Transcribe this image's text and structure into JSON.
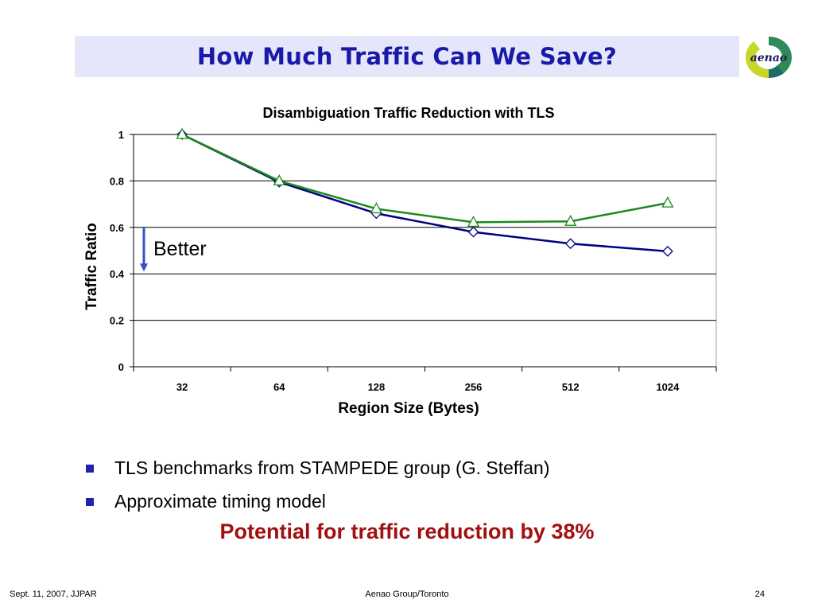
{
  "slide": {
    "title": "How Much Traffic Can We Save?",
    "logo_text": "aenao",
    "bullets": [
      "TLS benchmarks from STAMPEDE group (G. Steffan)",
      "Approximate timing model"
    ],
    "highlight": "Potential for traffic reduction by 38%",
    "footer": {
      "left": "Sept. 11, 2007, JJPAR",
      "center": "Aenao Group/Toronto",
      "right": "24"
    }
  },
  "colors": {
    "title": "#1a1aa8",
    "title_bg": "#e6e6fa",
    "bullet": "#2222b2",
    "highlight": "#a01010",
    "series_blue": "#000080",
    "series_green": "#1a8a1a",
    "arrow": "#3a4fc8"
  },
  "chart_data": {
    "type": "line",
    "title": "Disambiguation Traffic Reduction with TLS",
    "xlabel": "Region Size (Bytes)",
    "ylabel": "Traffic Ratio",
    "categories": [
      "32",
      "64",
      "128",
      "256",
      "512",
      "1024"
    ],
    "ylim": [
      0,
      1
    ],
    "yticks": [
      "0",
      "0.2",
      "0.4",
      "0.6",
      "0.8",
      "1"
    ],
    "grid": true,
    "legend": "none",
    "series": [
      {
        "marker": "diamond",
        "color": "#000080",
        "values": [
          1.0,
          0.795,
          0.66,
          0.58,
          0.53,
          0.497
        ]
      },
      {
        "marker": "triangle",
        "color": "#1a8a1a",
        "values": [
          1.0,
          0.8,
          0.68,
          0.622,
          0.626,
          0.705
        ]
      }
    ],
    "annotation": {
      "text": "Better",
      "arrow_from": 0.6,
      "arrow_to": 0.41
    }
  }
}
